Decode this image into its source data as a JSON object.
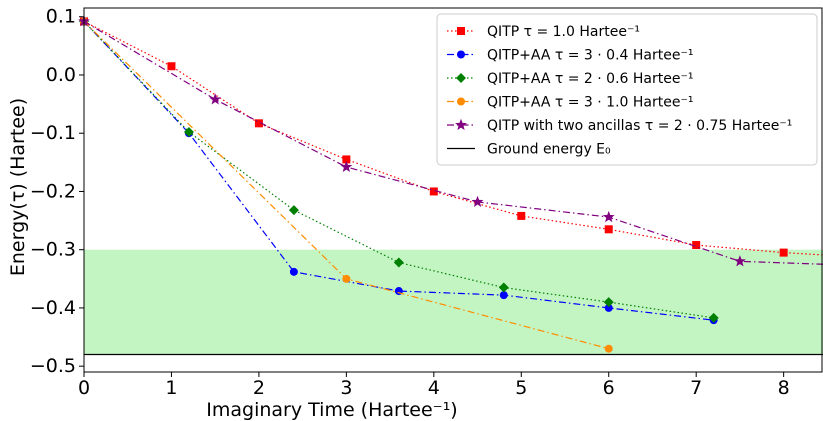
{
  "chart_data": {
    "type": "line",
    "title": "",
    "xlabel": "Imaginary Time (Hartee⁻¹)",
    "ylabel": "Energy(τ) (Hartee)",
    "xlim": [
      0,
      8.45
    ],
    "ylim": [
      -0.51,
      0.115
    ],
    "xticks": [
      0,
      1,
      2,
      3,
      4,
      5,
      6,
      7,
      8
    ],
    "yticks": [
      0.1,
      0.0,
      -0.1,
      -0.2,
      -0.3,
      -0.4,
      -0.5
    ],
    "xtick_labels": [
      "0",
      "1",
      "2",
      "3",
      "4",
      "5",
      "6",
      "7",
      "8"
    ],
    "ytick_labels": [
      "0.1",
      "0.0",
      "−0.1",
      "−0.2",
      "−0.3",
      "−0.4",
      "−0.5"
    ],
    "grid": false,
    "legend_position": "top-right",
    "shaded_band": {
      "y_from": -0.48,
      "y_to": -0.3,
      "color": "#c3f5c3"
    },
    "ground_energy": {
      "name": "Ground energy E₀",
      "value": -0.48,
      "color": "#000000"
    },
    "series": [
      {
        "name": "QITP τ = 1.0 Hartee⁻¹",
        "color": "#ff0000",
        "marker": "square",
        "dash": "dotted",
        "x": [
          0,
          1,
          2,
          3,
          4,
          5,
          6,
          7,
          8,
          8.45
        ],
        "y": [
          0.092,
          0.015,
          -0.083,
          -0.145,
          -0.2,
          -0.242,
          -0.265,
          -0.292,
          -0.305,
          -0.309
        ]
      },
      {
        "name": "QITP+AA τ = 3 · 0.4 Hartee⁻¹",
        "color": "#0000ff",
        "marker": "circle",
        "dash": "dashdot",
        "x": [
          0,
          1.2,
          2.4,
          3.6,
          4.8,
          6.0,
          7.2
        ],
        "y": [
          0.092,
          -0.1,
          -0.338,
          -0.371,
          -0.378,
          -0.4,
          -0.421
        ]
      },
      {
        "name": "QITP+AA τ = 2 · 0.6 Hartee⁻¹",
        "color": "#008000",
        "marker": "diamond",
        "dash": "dotted",
        "x": [
          0,
          1.2,
          2.4,
          3.6,
          4.8,
          6.0,
          7.2
        ],
        "y": [
          0.092,
          -0.098,
          -0.232,
          -0.322,
          -0.365,
          -0.39,
          -0.417
        ]
      },
      {
        "name": "QITP+AA τ = 3 · 1.0 Hartee⁻¹",
        "color": "#ff8c00",
        "marker": "circle",
        "dash": "dashdot",
        "x": [
          0,
          3,
          6
        ],
        "y": [
          0.092,
          -0.35,
          -0.47
        ]
      },
      {
        "name": "QITP with two ancillas τ = 2 · 0.75 Hartee⁻¹",
        "color": "#800080",
        "marker": "star",
        "dash": "dashdot",
        "x": [
          0,
          1.5,
          3,
          4.5,
          6,
          7.5,
          8.45
        ],
        "y": [
          0.092,
          -0.042,
          -0.158,
          -0.218,
          -0.244,
          -0.32,
          -0.325
        ]
      }
    ]
  }
}
